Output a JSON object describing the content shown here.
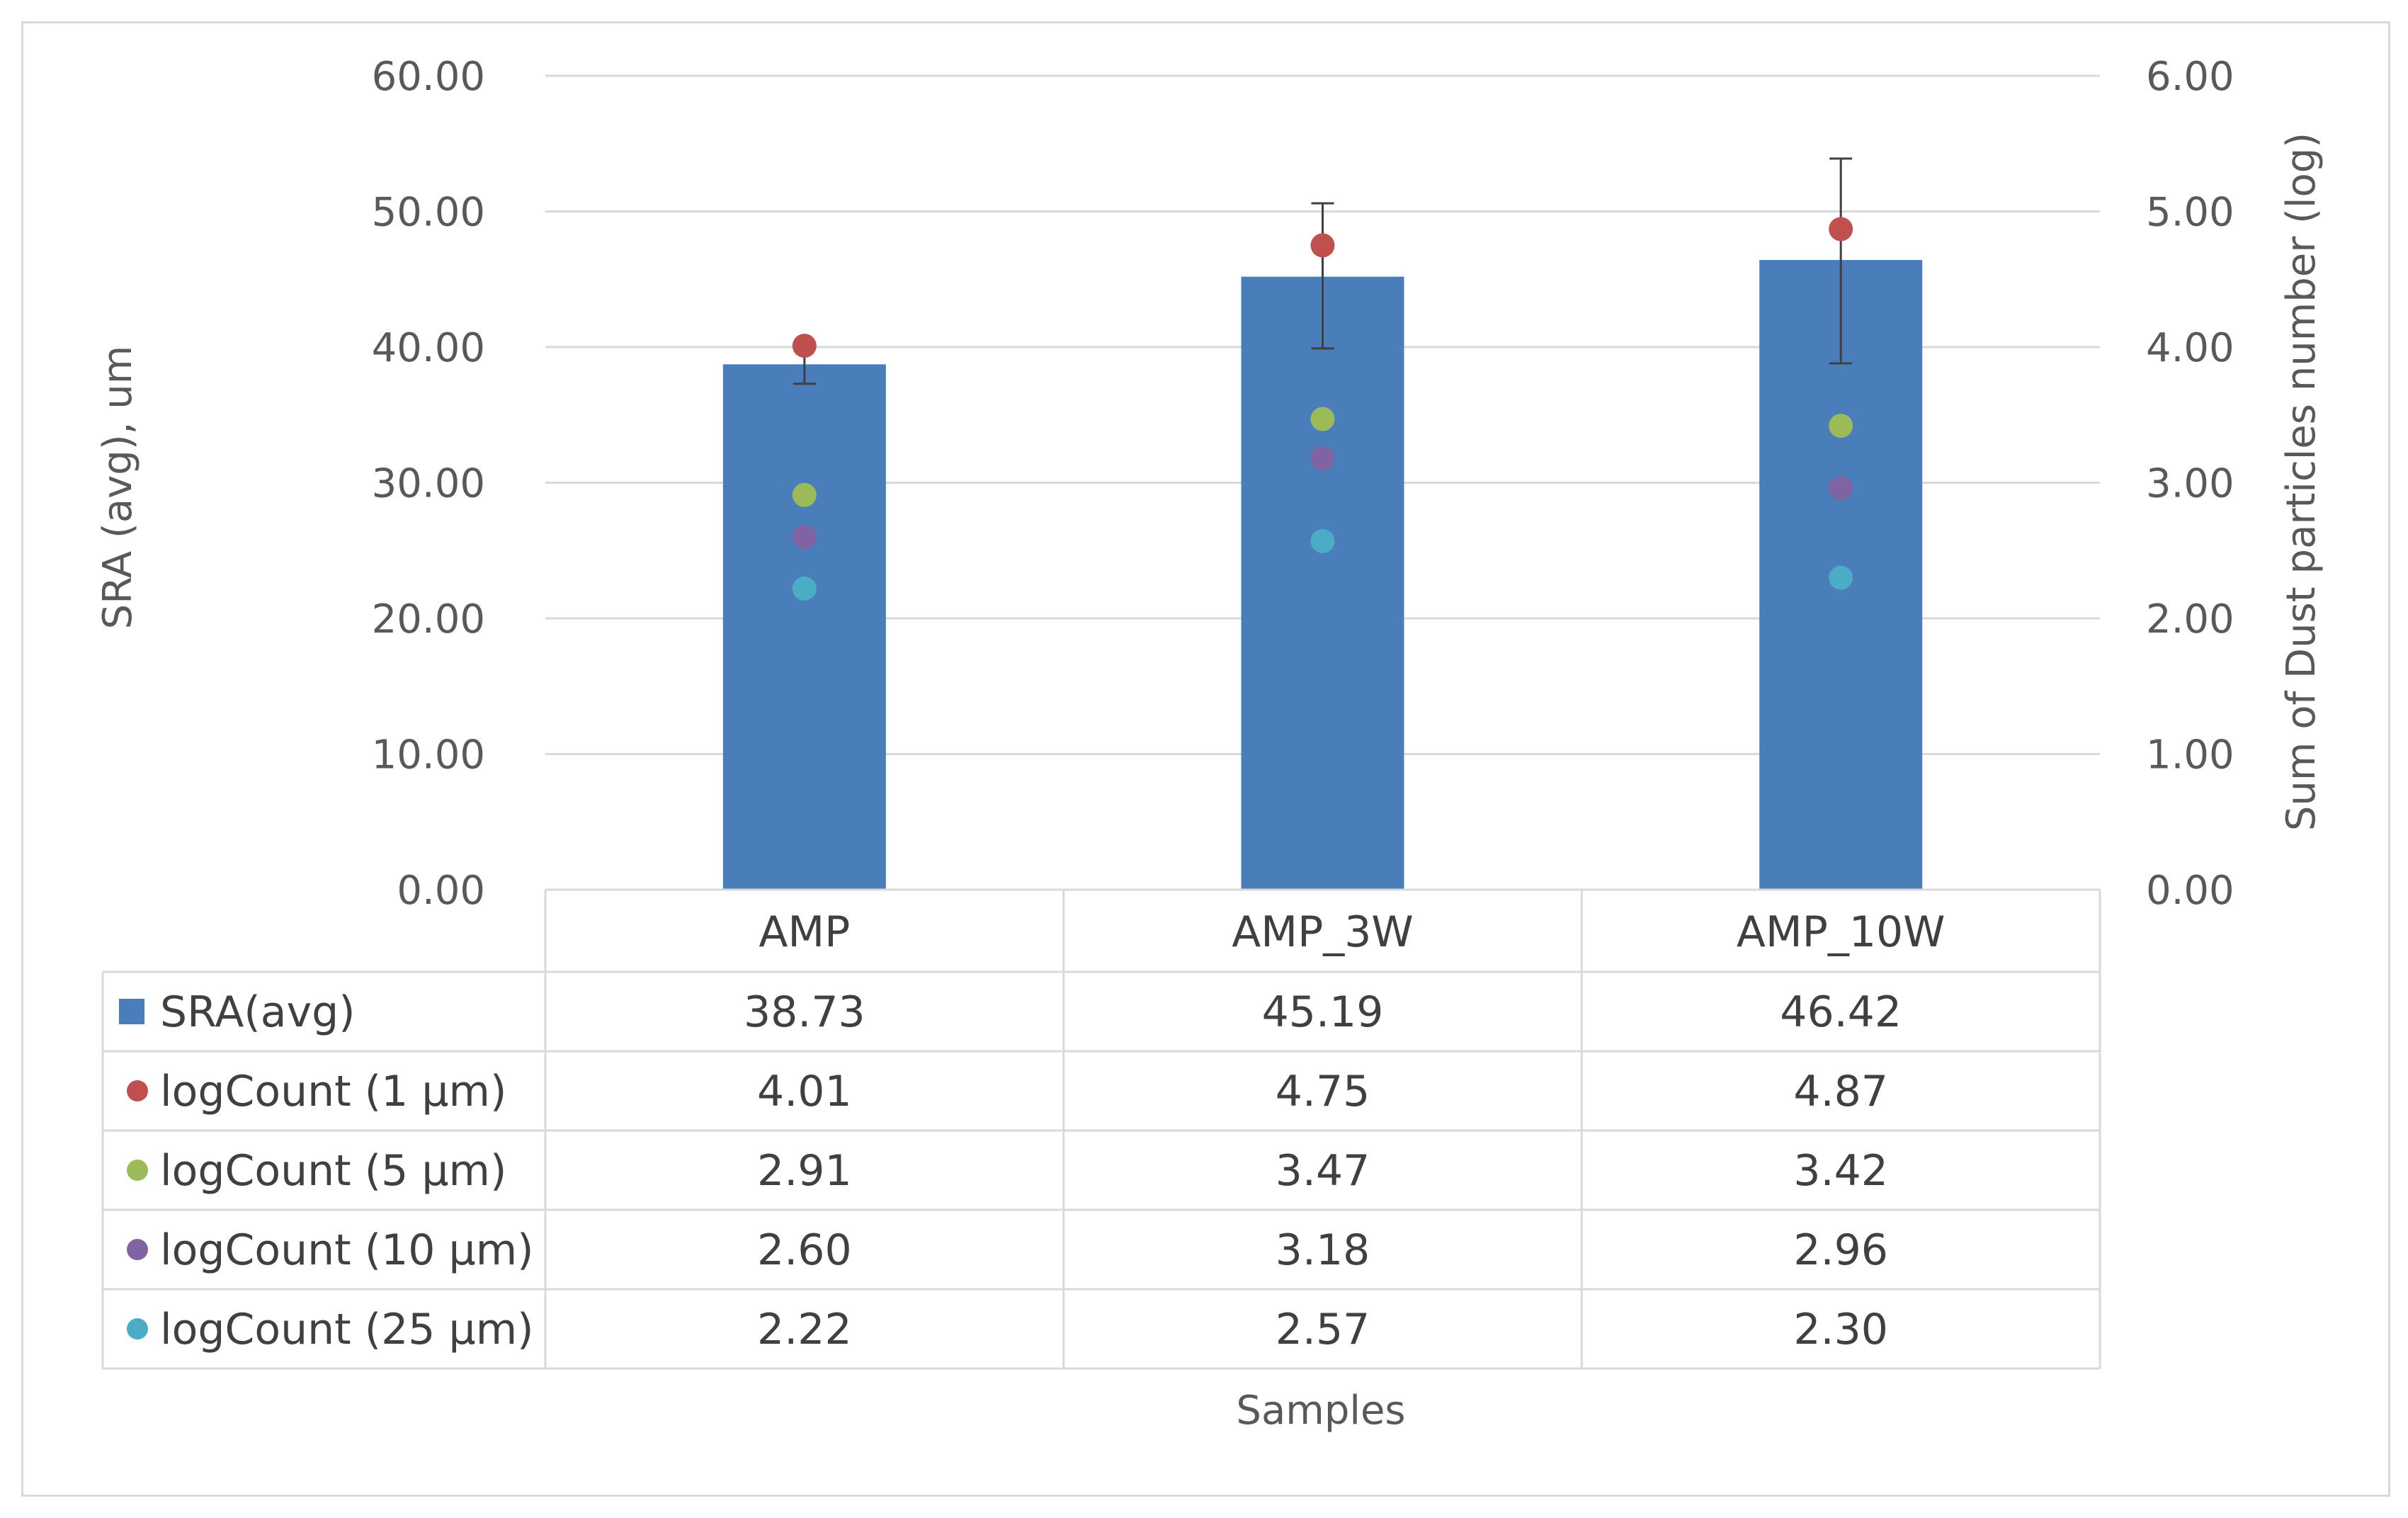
{
  "chart_data": {
    "type": "bar",
    "title": "",
    "xlabel": "Samples",
    "ylabel": "SRA (avg), um",
    "y2label": "Sum of Dust particles number (log)",
    "ylim": [
      0,
      60
    ],
    "y2lim": [
      0,
      6
    ],
    "yticks": [
      "0.00",
      "10.00",
      "20.00",
      "30.00",
      "40.00",
      "50.00",
      "60.00"
    ],
    "y2ticks": [
      "0.00",
      "1.00",
      "2.00",
      "3.00",
      "4.00",
      "5.00",
      "6.00"
    ],
    "categories": [
      "AMP",
      "AMP_3W",
      "AMP_10W"
    ],
    "bar_series": {
      "name": "SRA(avg)",
      "color": "#4a7ebb",
      "values": [
        38.73,
        45.19,
        46.42
      ],
      "values_text": [
        "38.73",
        "45.19",
        "46.42"
      ],
      "error_upper": [
        39.9,
        50.6,
        53.9
      ],
      "error_lower": [
        37.3,
        39.9,
        38.8
      ]
    },
    "dot_series": [
      {
        "name": "logCount (1 µm)",
        "color": "#c0504d",
        "values": [
          4.01,
          4.75,
          4.87
        ],
        "values_text": [
          "4.01",
          "4.75",
          "4.87"
        ]
      },
      {
        "name": "logCount (5 µm)",
        "color": "#9bbb59",
        "values": [
          2.91,
          3.47,
          3.42
        ],
        "values_text": [
          "2.91",
          "3.47",
          "3.42"
        ]
      },
      {
        "name": "logCount (10 µm)",
        "color": "#8064a2",
        "values": [
          2.6,
          3.18,
          2.96
        ],
        "values_text": [
          "2.60",
          "3.18",
          "2.96"
        ]
      },
      {
        "name": "logCount (25 µm)",
        "color": "#4bacc6",
        "values": [
          2.22,
          2.57,
          2.3
        ],
        "values_text": [
          "2.22",
          "2.57",
          "2.30"
        ]
      }
    ],
    "legend": "data-table",
    "grid": true
  }
}
